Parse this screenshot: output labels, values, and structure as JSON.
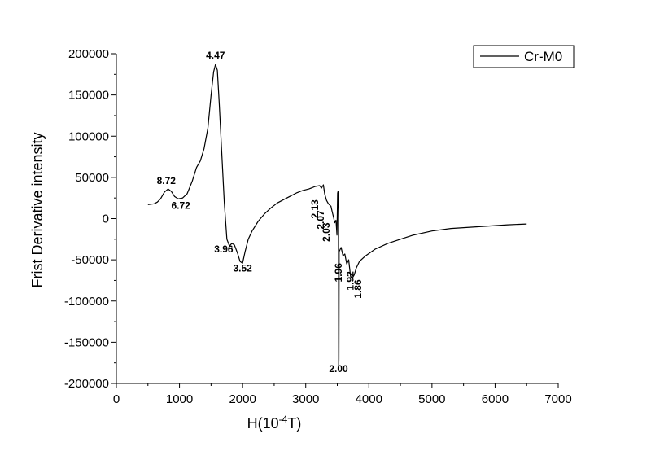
{
  "chart_data": {
    "type": "line",
    "title": "",
    "xlabel_prefix": "H(10",
    "xlabel_exp": "-4",
    "xlabel_suffix": "T)",
    "ylabel": "Frist Derivative intensity",
    "xlim": [
      0,
      7000
    ],
    "ylim": [
      -200000,
      200000
    ],
    "x_ticks": [
      0,
      1000,
      2000,
      3000,
      4000,
      5000,
      6000,
      7000
    ],
    "y_ticks": [
      -200000,
      -150000,
      -100000,
      -50000,
      0,
      50000,
      100000,
      150000,
      200000
    ],
    "grid": false,
    "legend_position": "top-right",
    "series": [
      {
        "name": "Cr-M0",
        "color": "#000000",
        "points": [
          [
            500,
            17000
          ],
          [
            600,
            18000
          ],
          [
            650,
            20000
          ],
          [
            700,
            24000
          ],
          [
            760,
            32000
          ],
          [
            820,
            36000
          ],
          [
            870,
            33000
          ],
          [
            920,
            27000
          ],
          [
            980,
            24000
          ],
          [
            1050,
            25000
          ],
          [
            1120,
            30000
          ],
          [
            1200,
            45000
          ],
          [
            1270,
            62000
          ],
          [
            1330,
            70000
          ],
          [
            1390,
            85000
          ],
          [
            1450,
            110000
          ],
          [
            1500,
            150000
          ],
          [
            1540,
            178000
          ],
          [
            1570,
            187000
          ],
          [
            1600,
            180000
          ],
          [
            1630,
            140000
          ],
          [
            1670,
            80000
          ],
          [
            1710,
            20000
          ],
          [
            1750,
            -25000
          ],
          [
            1790,
            -33000
          ],
          [
            1830,
            -30000
          ],
          [
            1870,
            -32000
          ],
          [
            1920,
            -42000
          ],
          [
            1960,
            -52000
          ],
          [
            2000,
            -54000
          ],
          [
            2040,
            -40000
          ],
          [
            2090,
            -25000
          ],
          [
            2150,
            -15000
          ],
          [
            2250,
            -3000
          ],
          [
            2350,
            6000
          ],
          [
            2450,
            13000
          ],
          [
            2550,
            19000
          ],
          [
            2650,
            23000
          ],
          [
            2750,
            27000
          ],
          [
            2850,
            31000
          ],
          [
            2950,
            34000
          ],
          [
            3050,
            36000
          ],
          [
            3150,
            39000
          ],
          [
            3220,
            40000
          ],
          [
            3250,
            37000
          ],
          [
            3280,
            41000
          ],
          [
            3300,
            30000
          ],
          [
            3330,
            22000
          ],
          [
            3360,
            18000
          ],
          [
            3400,
            15000
          ],
          [
            3420,
            8000
          ],
          [
            3440,
            2000
          ],
          [
            3460,
            -5000
          ],
          [
            3480,
            -2000
          ],
          [
            3495,
            -20000
          ],
          [
            3505,
            31000
          ],
          [
            3512,
            33000
          ],
          [
            3518,
            10000
          ],
          [
            3522,
            -185000
          ],
          [
            3526,
            -170000
          ],
          [
            3530,
            -40000
          ],
          [
            3560,
            -35000
          ],
          [
            3590,
            -45000
          ],
          [
            3620,
            -43000
          ],
          [
            3650,
            -55000
          ],
          [
            3680,
            -50000
          ],
          [
            3710,
            -70000
          ],
          [
            3740,
            -72000
          ],
          [
            3770,
            -68000
          ],
          [
            3800,
            -60000
          ],
          [
            3850,
            -52000
          ],
          [
            3950,
            -45000
          ],
          [
            4100,
            -37000
          ],
          [
            4300,
            -30000
          ],
          [
            4500,
            -25000
          ],
          [
            4700,
            -20000
          ],
          [
            5000,
            -15000
          ],
          [
            5300,
            -12000
          ],
          [
            5600,
            -10500
          ],
          [
            5900,
            -9000
          ],
          [
            6200,
            -7500
          ],
          [
            6500,
            -6500
          ]
        ]
      }
    ],
    "annotations": [
      {
        "text": "4.47",
        "x": 1570,
        "y": 194000,
        "rotate": 0
      },
      {
        "text": "8.72",
        "x": 790,
        "y": 42000,
        "rotate": 0
      },
      {
        "text": "6.72",
        "x": 1020,
        "y": 12000,
        "rotate": 0
      },
      {
        "text": "3.96",
        "x": 1700,
        "y": -41000,
        "rotate": 0
      },
      {
        "text": "3.52",
        "x": 2000,
        "y": -64000,
        "rotate": 0
      },
      {
        "text": "2.13",
        "x": 3200,
        "y": 0,
        "rotate": -90
      },
      {
        "text": "2.07",
        "x": 3290,
        "y": -13000,
        "rotate": -90
      },
      {
        "text": "2.03",
        "x": 3380,
        "y": -28000,
        "rotate": -90
      },
      {
        "text": "2.00",
        "x": 3520,
        "y": -186000,
        "rotate": 0
      },
      {
        "text": "1.96",
        "x": 3570,
        "y": -77000,
        "rotate": -90
      },
      {
        "text": "1.92",
        "x": 3760,
        "y": -87000,
        "rotate": -90
      },
      {
        "text": "1.86",
        "x": 3880,
        "y": -97000,
        "rotate": -90
      }
    ]
  }
}
